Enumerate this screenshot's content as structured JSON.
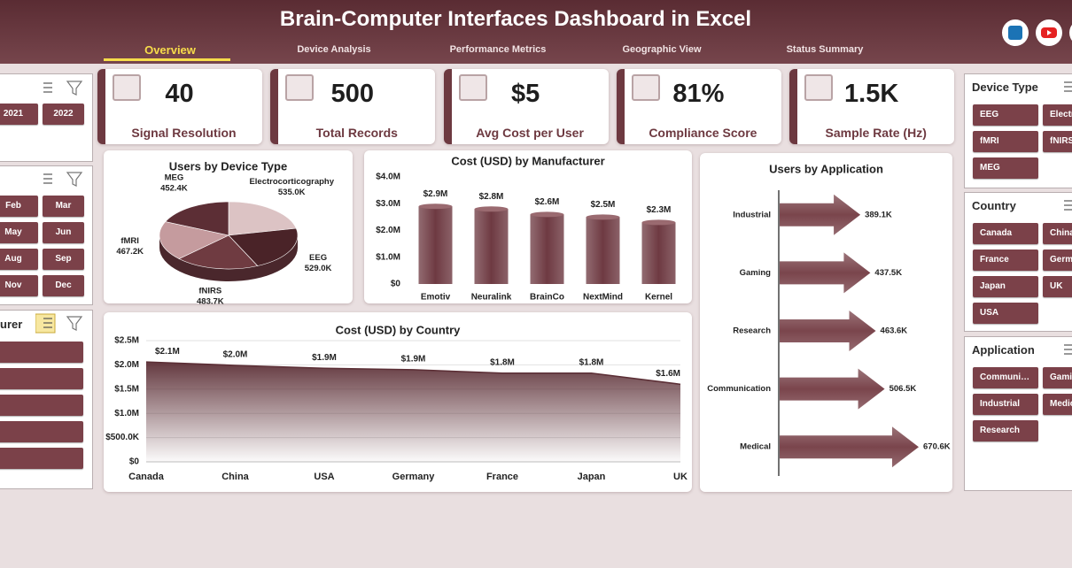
{
  "header": {
    "title": "Brain-Computer Interfaces Dashboard in Excel",
    "nav": [
      "Overview",
      "Device Analysis",
      "Performance Metrics",
      "Geographic View",
      "Status Summary"
    ]
  },
  "kpis": [
    {
      "value": "40",
      "label": "Signal Resolution"
    },
    {
      "value": "500",
      "label": "Total Records"
    },
    {
      "value": "$5",
      "label": "Avg Cost per User"
    },
    {
      "value": "81%",
      "label": "Compliance Score"
    },
    {
      "value": "1.5K",
      "label": "Sample Rate (Hz)"
    }
  ],
  "slicers_left": [
    {
      "items": [
        "2021",
        "2022"
      ]
    },
    {
      "items": [
        "Feb",
        "Mar",
        "May",
        "Jun",
        "Aug",
        "Sep",
        "Nov",
        "Dec"
      ]
    },
    {
      "title": "urer"
    }
  ],
  "slicers_right": [
    {
      "title": "Device Type",
      "items": [
        "EEG",
        "Electrocorticography",
        "fMRI",
        "fNIRS",
        "MEG"
      ]
    },
    {
      "title": "Country",
      "items": [
        "Canada",
        "China",
        "France",
        "Germany",
        "Japan",
        "UK",
        "USA"
      ]
    },
    {
      "title": "Application",
      "items": [
        "Communication",
        "Gaming",
        "Industrial",
        "Medical",
        "Research"
      ]
    }
  ],
  "chart_data": [
    {
      "type": "pie",
      "title": "Users by Device Type",
      "categories": [
        "Electrocorticography",
        "EEG",
        "fNIRS",
        "fMRI",
        "MEG"
      ],
      "values": [
        535.0,
        529.0,
        483.7,
        467.2,
        452.4
      ],
      "value_labels": [
        "535.0K",
        "529.0K",
        "483.7K",
        "467.2K",
        "452.4K"
      ],
      "colors": [
        "#dcc3c4",
        "#4a2328",
        "#6f3b41",
        "#c59b9e",
        "#5c2e35"
      ]
    },
    {
      "type": "bar",
      "title": "Cost (USD) by Manufacturer",
      "categories": [
        "Emotiv",
        "Neuralink",
        "BrainCo",
        "NextMind",
        "Kernel"
      ],
      "values": [
        2.9,
        2.8,
        2.6,
        2.5,
        2.3
      ],
      "value_labels": [
        "$2.9M",
        "$2.8M",
        "$2.6M",
        "$2.5M",
        "$2.3M"
      ],
      "color": "#6e3a42",
      "ylim": [
        0,
        4
      ],
      "yticks": [
        {
          "value": 0,
          "label": "$0"
        },
        {
          "value": 1,
          "label": "$1.0M"
        },
        {
          "value": 2,
          "label": "$2.0M"
        },
        {
          "value": 3,
          "label": "$3.0M"
        },
        {
          "value": 4,
          "label": "$4.0M"
        }
      ],
      "grid": false
    },
    {
      "type": "area",
      "title": "Cost (USD) by Country",
      "categories": [
        "Canada",
        "China",
        "USA",
        "Germany",
        "France",
        "Japan",
        "UK"
      ],
      "values": [
        2.06,
        1.99,
        1.93,
        1.9,
        1.83,
        1.83,
        1.6
      ],
      "value_labels": [
        "$2.1M",
        "$2.0M",
        "$1.9M",
        "$1.9M",
        "$1.8M",
        "$1.8M",
        "$1.6M"
      ],
      "color": "#5b2e35",
      "ylim": [
        0,
        2.5
      ],
      "yticks": [
        {
          "value": 0,
          "label": "$0"
        },
        {
          "value": 0.5,
          "label": "$500.0K"
        },
        {
          "value": 1,
          "label": "$1.0M"
        },
        {
          "value": 1.5,
          "label": "$1.5M"
        },
        {
          "value": 2,
          "label": "$2.0M"
        },
        {
          "value": 2.5,
          "label": "$2.5M"
        }
      ],
      "grid": true
    },
    {
      "type": "bar",
      "orientation": "horizontal",
      "title": "Users by Application",
      "categories": [
        "Industrial",
        "Gaming",
        "Research",
        "Communication",
        "Medical"
      ],
      "values": [
        389.1,
        437.5,
        463.6,
        506.5,
        670.6
      ],
      "value_labels": [
        "389.1K",
        "437.5K",
        "463.6K",
        "506.5K",
        "670.6K"
      ],
      "color": "#7a454c"
    }
  ]
}
